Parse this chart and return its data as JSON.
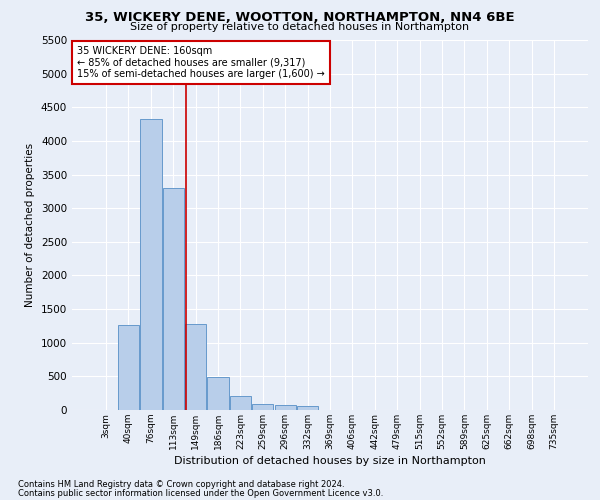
{
  "title_line1": "35, WICKERY DENE, WOOTTON, NORTHAMPTON, NN4 6BE",
  "title_line2": "Size of property relative to detached houses in Northampton",
  "xlabel": "Distribution of detached houses by size in Northampton",
  "ylabel": "Number of detached properties",
  "footnote1": "Contains HM Land Registry data © Crown copyright and database right 2024.",
  "footnote2": "Contains public sector information licensed under the Open Government Licence v3.0.",
  "bar_labels": [
    "3sqm",
    "40sqm",
    "76sqm",
    "113sqm",
    "149sqm",
    "186sqm",
    "223sqm",
    "259sqm",
    "296sqm",
    "332sqm",
    "369sqm",
    "406sqm",
    "442sqm",
    "479sqm",
    "515sqm",
    "552sqm",
    "589sqm",
    "625sqm",
    "662sqm",
    "698sqm",
    "735sqm"
  ],
  "bar_values": [
    0,
    1270,
    4330,
    3300,
    1285,
    490,
    210,
    90,
    70,
    55,
    0,
    0,
    0,
    0,
    0,
    0,
    0,
    0,
    0,
    0,
    0
  ],
  "bar_color": "#b8ceea",
  "bar_edge_color": "#6699cc",
  "background_color": "#e8eef8",
  "grid_color": "#ffffff",
  "annotation_text": "35 WICKERY DENE: 160sqm\n← 85% of detached houses are smaller (9,317)\n15% of semi-detached houses are larger (1,600) →",
  "annotation_box_color": "#ffffff",
  "annotation_box_edge_color": "#cc0000",
  "vline_x": 3.55,
  "vline_color": "#cc0000",
  "ylim": [
    0,
    5500
  ],
  "yticks": [
    0,
    500,
    1000,
    1500,
    2000,
    2500,
    3000,
    3500,
    4000,
    4500,
    5000,
    5500
  ]
}
